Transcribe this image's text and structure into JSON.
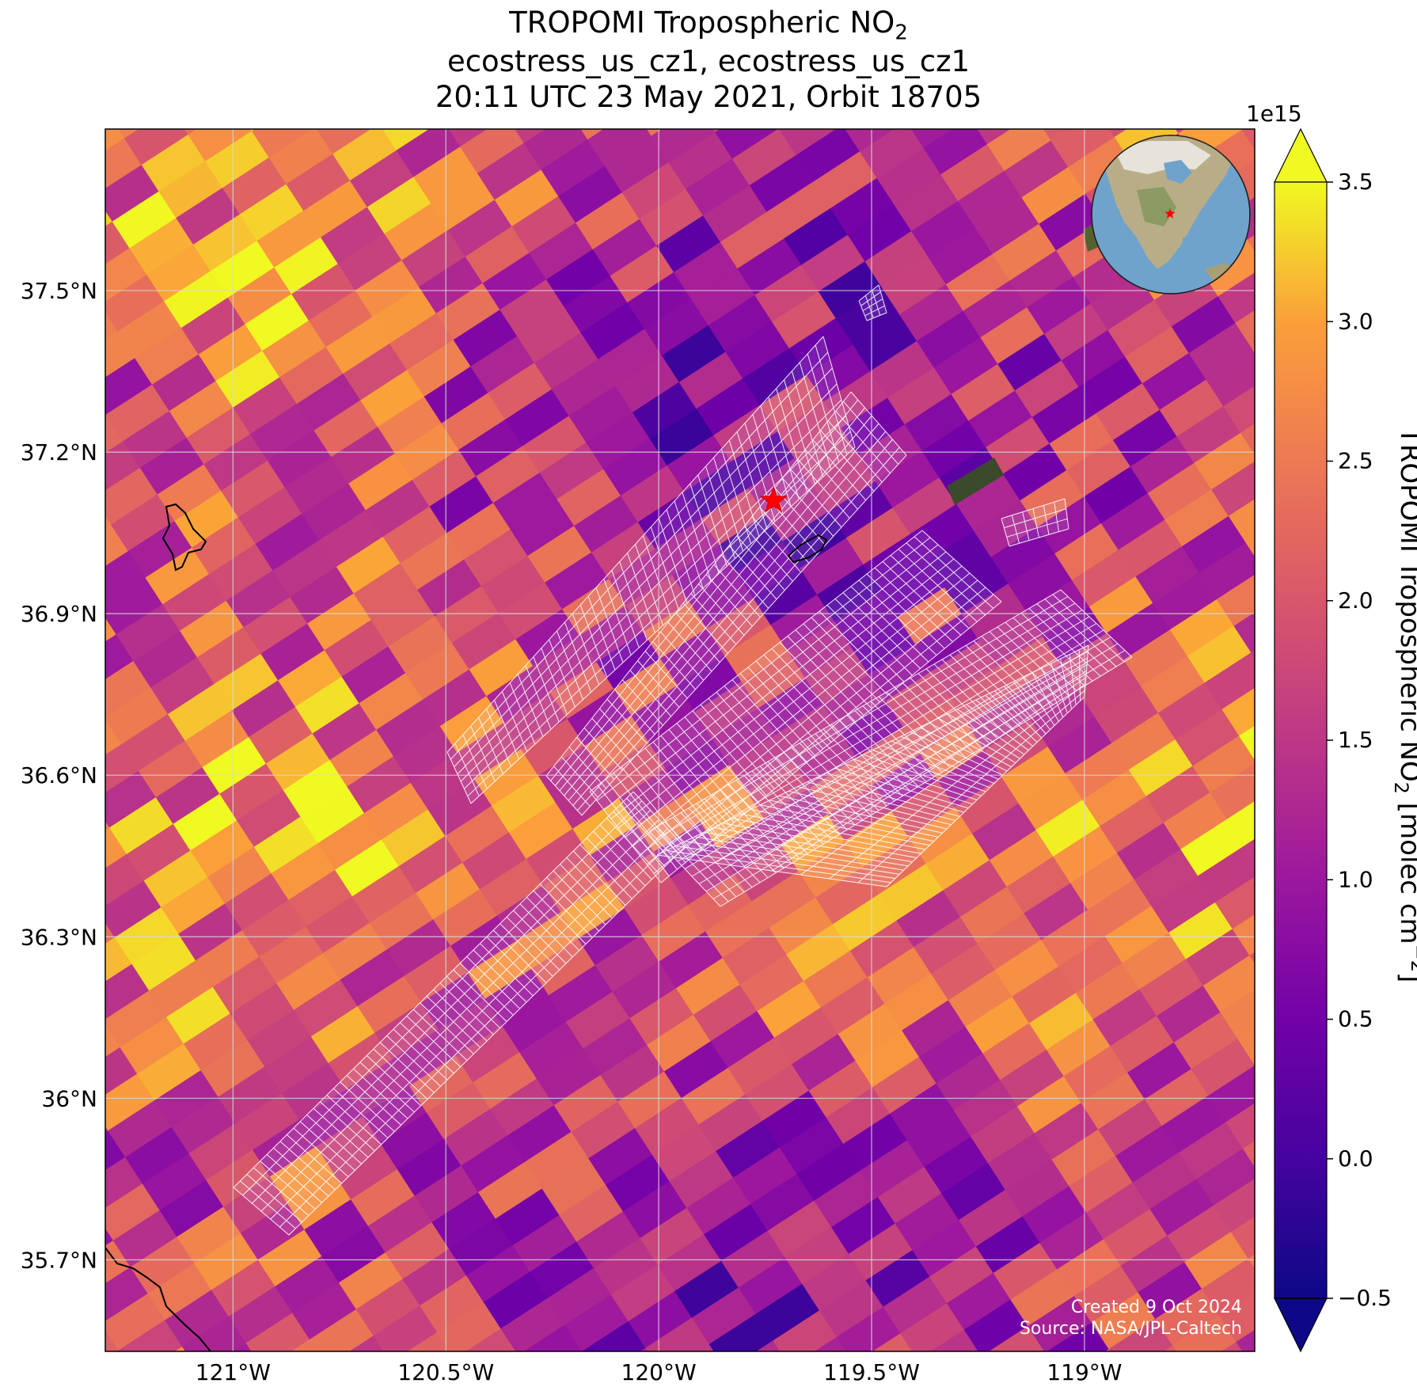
{
  "title": {
    "line1_prefix": "TROPOMI Tropospheric NO",
    "line1_sub": "2",
    "line2": "ecostress_us_cz1, ecostress_us_cz1",
    "line3": "20:11 UTC 23 May 2021, Orbit 18705"
  },
  "map": {
    "extent": {
      "lon_min": -121.3,
      "lon_max": -118.6,
      "lat_min": 35.53,
      "lat_max": 37.8
    },
    "lon_ticks": [
      {
        "value": -121.0,
        "label": "121°W"
      },
      {
        "value": -120.5,
        "label": "120.5°W"
      },
      {
        "value": -120.0,
        "label": "120°W"
      },
      {
        "value": -119.5,
        "label": "119.5°W"
      },
      {
        "value": -119.0,
        "label": "119°W"
      }
    ],
    "lat_ticks": [
      {
        "value": 35.7,
        "label": "35.7°N"
      },
      {
        "value": 36.0,
        "label": "36°N"
      },
      {
        "value": 36.3,
        "label": "36.3°N"
      },
      {
        "value": 36.6,
        "label": "36.6°N"
      },
      {
        "value": 36.9,
        "label": "36.9°N"
      },
      {
        "value": 37.2,
        "label": "37.2°N"
      },
      {
        "value": 37.5,
        "label": "37.5°N"
      }
    ],
    "gridlines": true,
    "site_marker": {
      "lon": -119.73,
      "lat": 37.11,
      "color": "#ff0000",
      "symbol": "star"
    },
    "inset_globe": {
      "placement": "top-right",
      "ocean_color": "#6fa3cc",
      "marker_color": "#ff0000"
    },
    "credits": {
      "created": "Created 9 Oct 2024",
      "source": "Source: NASA/JPL-Caltech"
    }
  },
  "colorbar": {
    "colormap": "plasma",
    "vmin": -0.5,
    "vmax": 3.5,
    "exponent_label": "1e15",
    "ticks": [
      {
        "value": -0.5,
        "label": "−0.5"
      },
      {
        "value": 0.0,
        "label": "0.0"
      },
      {
        "value": 0.5,
        "label": "0.5"
      },
      {
        "value": 1.0,
        "label": "1.0"
      },
      {
        "value": 1.5,
        "label": "1.5"
      },
      {
        "value": 2.0,
        "label": "2.0"
      },
      {
        "value": 2.5,
        "label": "2.5"
      },
      {
        "value": 3.0,
        "label": "3.0"
      },
      {
        "value": 3.5,
        "label": "3.5"
      }
    ],
    "label_prefix": "TROPOMI Tropospheric NO",
    "label_sub": "2",
    "label_suffix": " [molec cm",
    "label_sup": "−2",
    "label_end": "]"
  }
}
